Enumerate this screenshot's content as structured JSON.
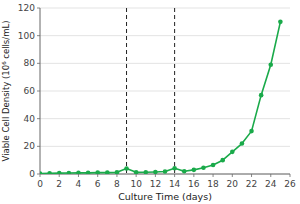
{
  "chart_data": {
    "type": "line",
    "x": [
      0,
      1,
      2,
      3,
      4,
      5,
      6,
      7,
      8,
      9,
      10,
      11,
      12,
      13,
      14,
      15,
      16,
      17,
      18,
      19,
      20,
      21,
      22,
      23,
      24,
      25
    ],
    "values": [
      0.4,
      0.5,
      0.6,
      0.7,
      0.8,
      0.8,
      1.0,
      1.0,
      1.2,
      4.0,
      1.2,
      1.3,
      1.5,
      1.8,
      4.2,
      2.0,
      3.0,
      4.5,
      6.5,
      10.0,
      16.0,
      22.0,
      31.0,
      57.0,
      79.0,
      110.0
    ],
    "color": "#1aaa4a",
    "marker": "circle",
    "vlines": [
      9,
      14
    ],
    "xlim": [
      0,
      26
    ],
    "ylim": [
      0,
      120
    ],
    "xticks": [
      0,
      2,
      4,
      6,
      8,
      10,
      12,
      14,
      16,
      18,
      20,
      22,
      24,
      26
    ],
    "yticks": [
      0,
      20,
      40,
      60,
      80,
      100,
      120
    ],
    "xlabel": "Culture Time (days)",
    "ylabel": "Viable Cell Density (10⁶ cells/mL)",
    "grid": "y"
  }
}
